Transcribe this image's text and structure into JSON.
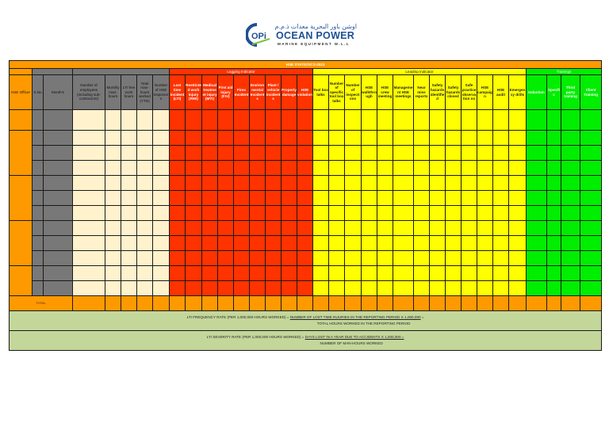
{
  "logo": {
    "mark": "OPi",
    "arabic": "اوشن باور البحرية معدات ذ.م.م",
    "name": "OCEAN POWER",
    "subtitle": "MARINE EQUIPMENT W.L.L"
  },
  "sheet": {
    "title": "HSE STATISTICS-2023",
    "groups": {
      "lagging": "Lagging Indicator",
      "leading": "Leading Indicator",
      "training": "Trainings"
    },
    "headers": {
      "hse_officer": "HSE Officer",
      "sno": "S.No",
      "month": "Month's",
      "general": [
        "Number of employees (including sub-contractors)",
        "Monthly man-hours",
        "LTI free work hours",
        "Total man-hours worked (YTD)",
        "Number of HSE Inspectors"
      ],
      "lagging": [
        "Lost time incident (LTI)",
        "Restricted work injury (RWI)",
        "Medical treatment injury (MTI)",
        "First aid injury (FAI)",
        "Fires Incident",
        "Environmental Incidents",
        "Plant / vehicle incidents",
        "Property damage",
        "HSE violation"
      ],
      "leading": [
        "Tool box talks",
        "Number of specific tool box talks",
        "Number of inspections",
        "HSE walkthrough",
        "HSE crew meeting",
        "Management HSE meetings",
        "Near miss reports",
        "Safety hazards identified",
        "Safety hazards closed",
        "Safe practice observation ns",
        "HSE campaign",
        "HSE audit",
        "Emergency drills"
      ],
      "training": [
        "Induction",
        "Specific",
        "Third party training",
        "Client Training"
      ]
    },
    "rows": 12,
    "officer_groups": [
      1,
      3,
      3,
      3,
      2
    ],
    "total_label": "TOTAL"
  },
  "formulas": {
    "lti_frequency": {
      "label": "LTI FREQUENCY RATE (PER 1,000,000 HOURS WORKED) =",
      "numerator": "NUMBER OF LOST TIME INJURIES IN THE REPORTING PERIOD X 1,000,000",
      "equals": "=",
      "denominator": "TOTAL HOURS WORKED IN THE REPORTING PERIOD"
    },
    "lti_severity": {
      "label": "LTI SEVERITY RATE (PER 1,000,000 HOURS WORKED) =",
      "numerator": "DAYS LOST IN A YEAR DUE TO ACCIDENTS X 1,000,000 =",
      "denominator": "NUMBER OF MAN-HOURS WORKED"
    }
  },
  "colors": {
    "header_orange": "#ff9900",
    "general_gray": "#787878",
    "input_cream": "#fff2cc",
    "lagging_red": "#ff3300",
    "leading_yellow": "#ffff00",
    "training_green": "#00ee00",
    "formula_olive": "#c4d79b"
  }
}
